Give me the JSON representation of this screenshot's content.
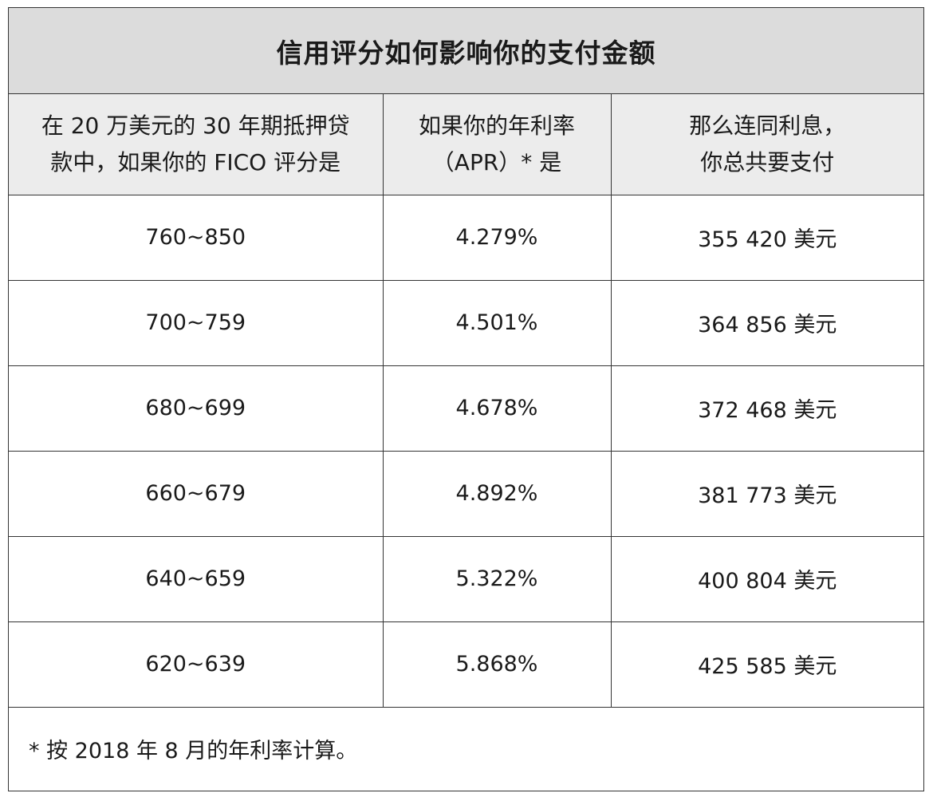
{
  "title": "信用评分如何影响你的支付金额",
  "headers": [
    {
      "line1": "在 20 万美元的 30 年期抵押贷",
      "line2": "款中，如果你的 FICO 评分是"
    },
    {
      "line1": "如果你的年利率",
      "line2": "（APR）* 是"
    },
    {
      "line1": "那么连同利息，",
      "line2": "你总共要支付"
    }
  ],
  "rows": [
    {
      "score": "760~850",
      "apr": "4.279%",
      "total": "355 420 美元"
    },
    {
      "score": "700~759",
      "apr": "4.501%",
      "total": "364 856 美元"
    },
    {
      "score": "680~699",
      "apr": "4.678%",
      "total": "372 468 美元"
    },
    {
      "score": "660~679",
      "apr": "4.892%",
      "total": "381 773 美元"
    },
    {
      "score": "640~659",
      "apr": "5.322%",
      "total": "400 804 美元"
    },
    {
      "score": "620~639",
      "apr": "5.868%",
      "total": "425 585 美元"
    }
  ],
  "footnote": "* 按 2018 年 8 月的年利率计算。"
}
